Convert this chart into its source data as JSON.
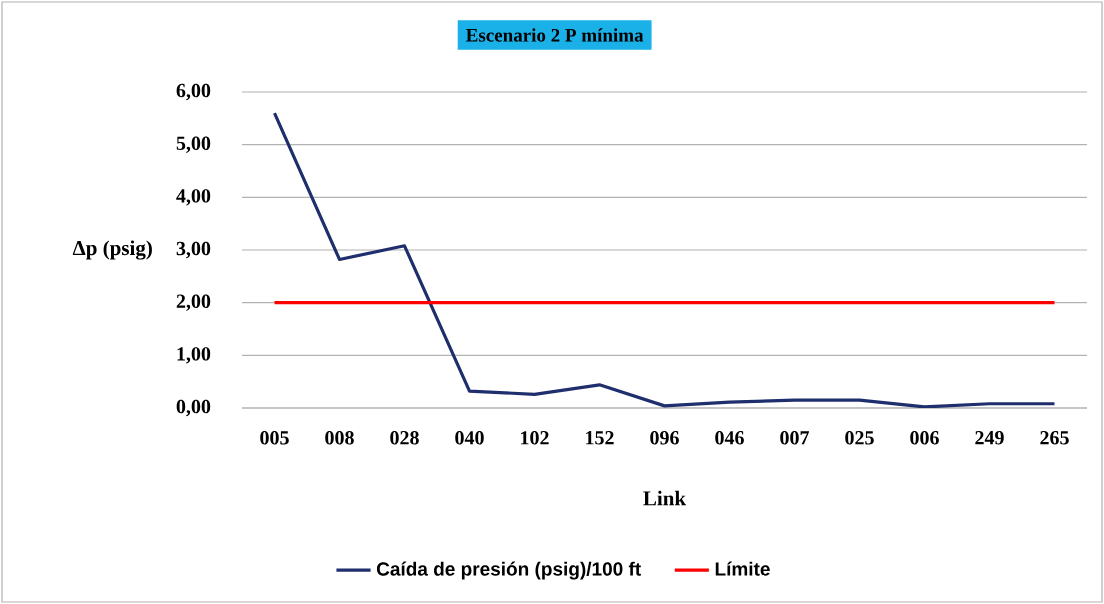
{
  "chart_data": {
    "type": "line",
    "title": "Escenario 2 P mínima",
    "xlabel": "Link",
    "ylabel": "Δp (psig)",
    "categories": [
      "005",
      "008",
      "028",
      "040",
      "102",
      "152",
      "096",
      "046",
      "007",
      "025",
      "006",
      "249",
      "265"
    ],
    "series": [
      {
        "name": "Caída de presión (psig)/100 ft",
        "color": "#1f2f6e",
        "values": [
          5.6,
          2.82,
          3.08,
          0.32,
          0.26,
          0.44,
          0.04,
          0.11,
          0.15,
          0.15,
          0.02,
          0.08,
          0.08
        ]
      },
      {
        "name": "Límite",
        "color": "#ff0000",
        "values": [
          2,
          2,
          2,
          2,
          2,
          2,
          2,
          2,
          2,
          2,
          2,
          2,
          2
        ]
      }
    ],
    "ylim": [
      0,
      6
    ],
    "yticks": [
      {
        "value": 0,
        "label": "0,00"
      },
      {
        "value": 1,
        "label": "1,00"
      },
      {
        "value": 2,
        "label": "2,00"
      },
      {
        "value": 3,
        "label": "3,00"
      },
      {
        "value": 4,
        "label": "4,00"
      },
      {
        "value": 5,
        "label": "5,00"
      },
      {
        "value": 6,
        "label": "6,00"
      }
    ],
    "grid": "y",
    "legend": "bottom"
  }
}
